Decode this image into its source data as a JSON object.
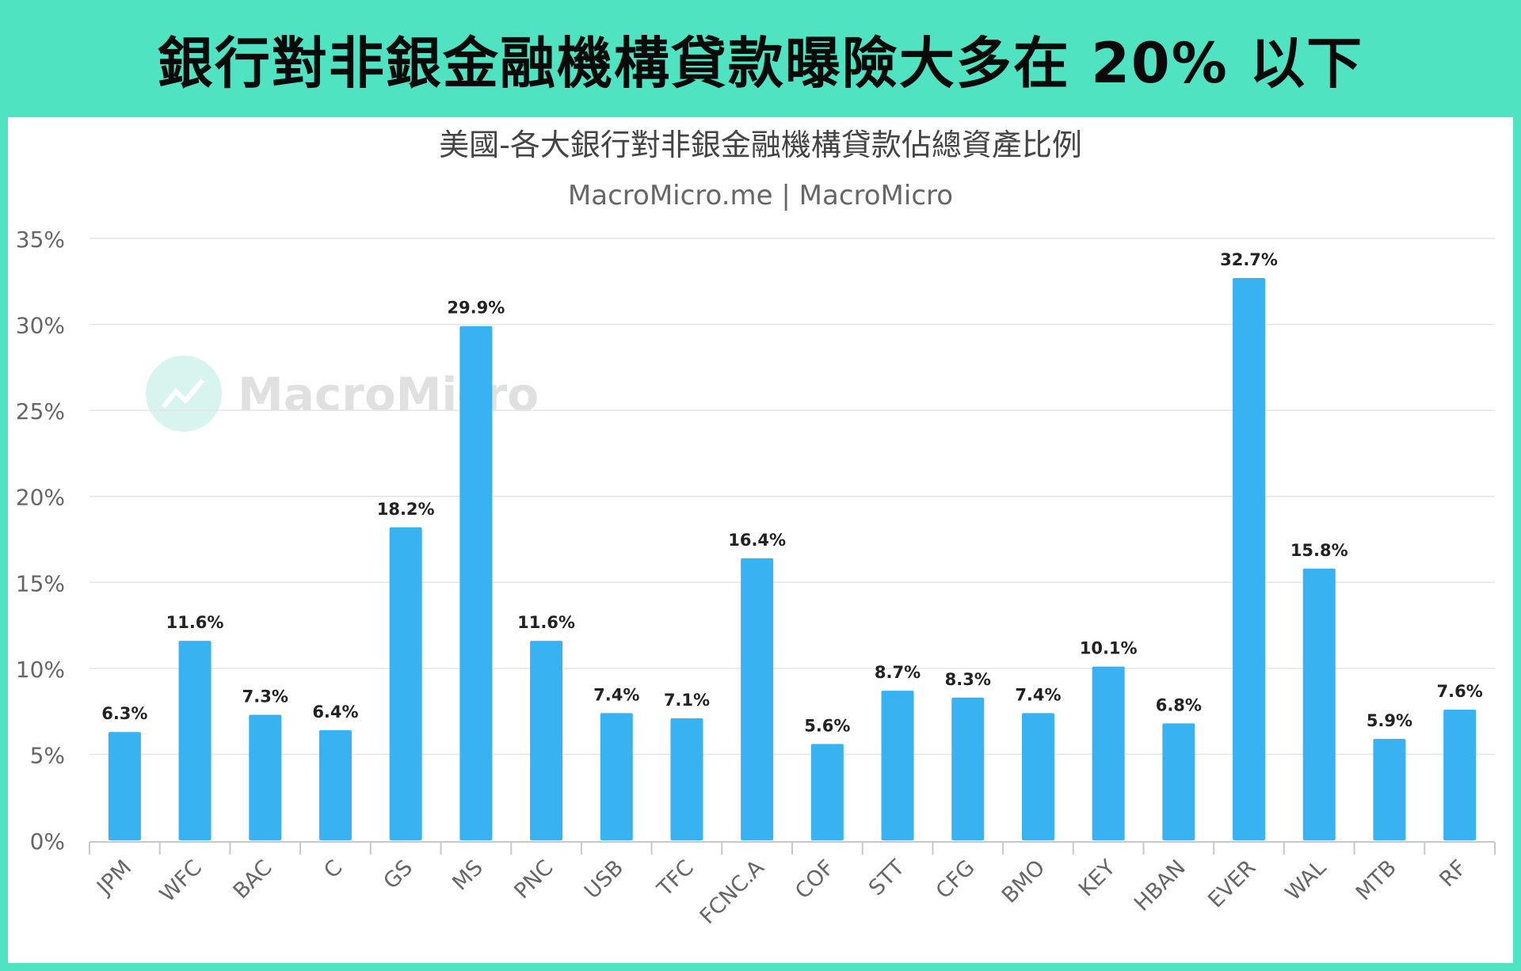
{
  "header": {
    "title": "銀行對非銀金融機構貸款曝險大多在 20% 以下"
  },
  "watermark": {
    "text": "MacroMicro",
    "icon": "macromicro-logo-icon",
    "color": "#8fe0cf"
  },
  "colors": {
    "background": "#4fe3c1",
    "bar": "#38b2f0",
    "grid": "#e4e4e4",
    "axis": "#c8c8c8"
  },
  "chart_data": {
    "type": "bar",
    "title": "美國-各大銀行對非銀金融機構貸款佔總資產比例",
    "subtitle": "MacroMicro.me | MacroMicro",
    "ylim": [
      0,
      35
    ],
    "yticks": [
      "0%",
      "5%",
      "10%",
      "15%",
      "20%",
      "25%",
      "30%",
      "35%"
    ],
    "categories": [
      "JPM",
      "WFC",
      "BAC",
      "C",
      "GS",
      "MS",
      "PNC",
      "USB",
      "TFC",
      "FCNC.A",
      "COF",
      "STT",
      "CFG",
      "BMO",
      "KEY",
      "HBAN",
      "EVER",
      "WAL",
      "MTB",
      "RF"
    ],
    "values": [
      6.3,
      11.6,
      7.3,
      6.4,
      18.2,
      29.9,
      11.6,
      7.4,
      7.1,
      16.4,
      5.6,
      8.7,
      8.3,
      7.4,
      10.1,
      6.8,
      32.7,
      15.8,
      5.9,
      7.6
    ],
    "labels": [
      "6.3%",
      "11.6%",
      "7.3%",
      "6.4%",
      "18.2%",
      "29.9%",
      "11.6%",
      "7.4%",
      "7.1%",
      "16.4%",
      "5.6%",
      "8.7%",
      "8.3%",
      "7.4%",
      "10.1%",
      "6.8%",
      "32.7%",
      "15.8%",
      "5.9%",
      "7.6%"
    ],
    "grid": true,
    "legend": "none"
  }
}
